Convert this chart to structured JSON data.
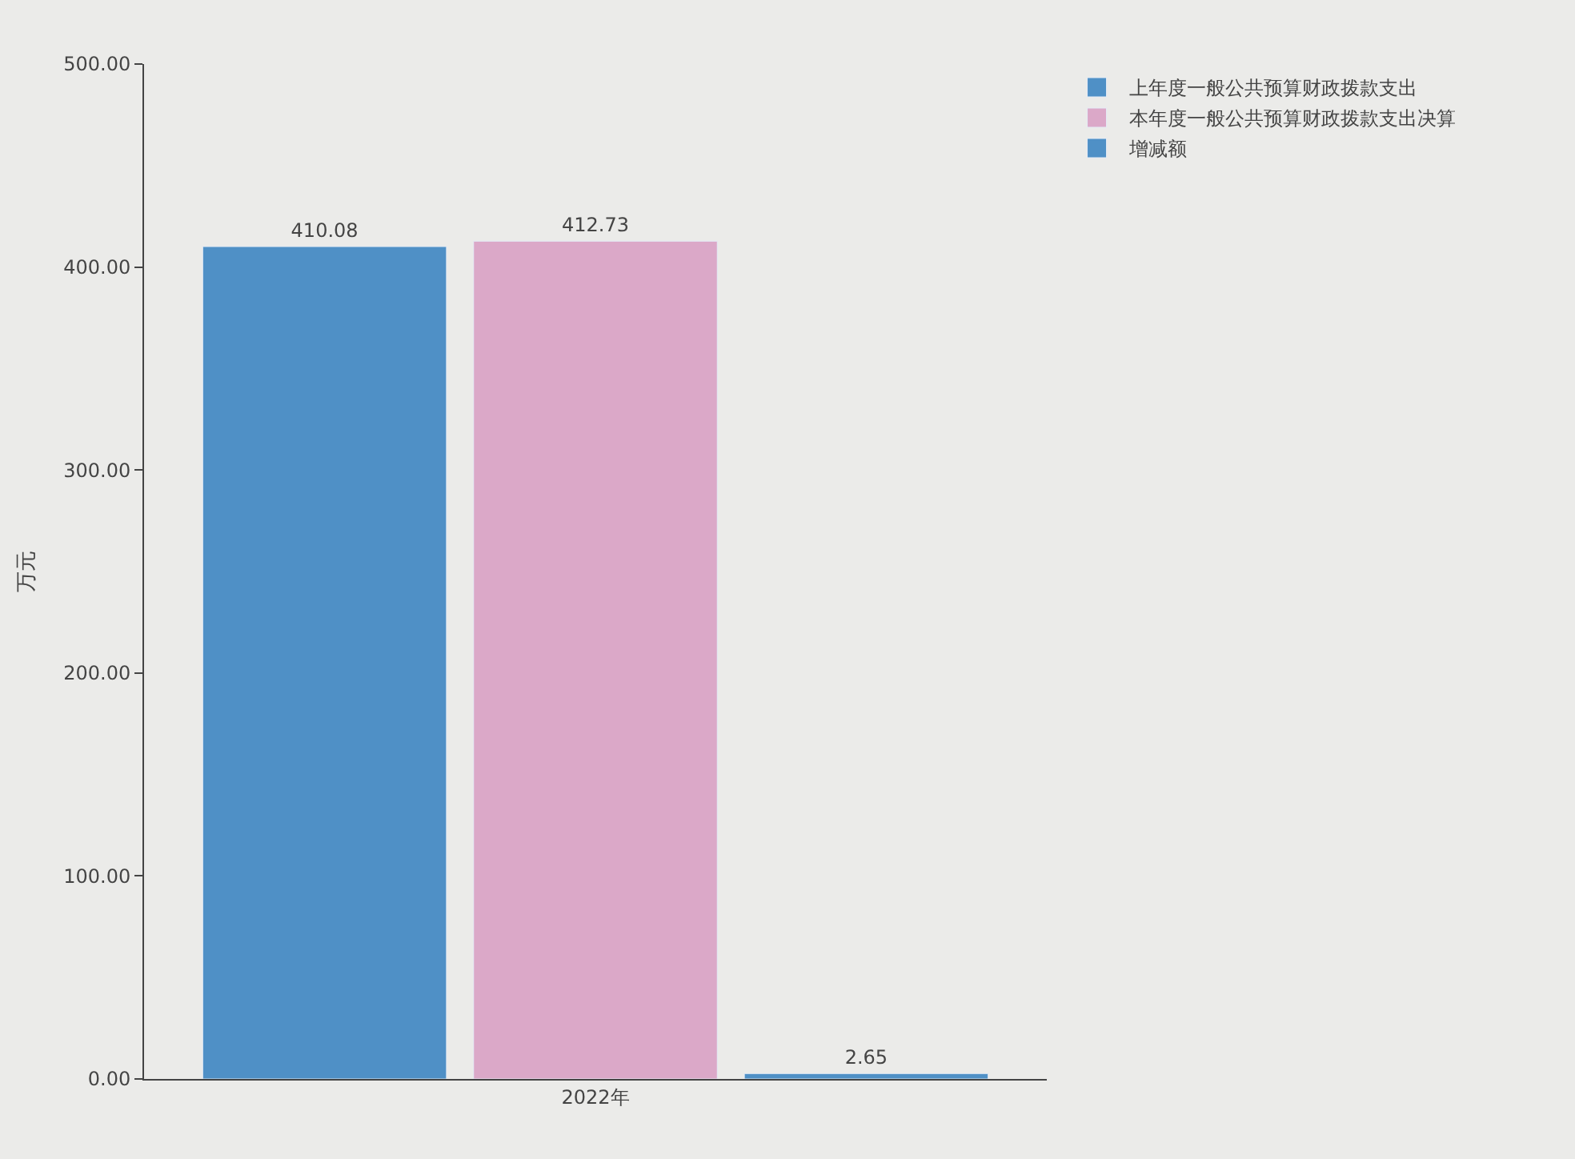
{
  "chart_data": {
    "type": "bar",
    "ylabel": "万元",
    "categories": [
      "2022年"
    ],
    "series": [
      {
        "name": "上年度一般公共预算财政拨款支出",
        "color": "#4f90c6",
        "values": [
          410.08
        ]
      },
      {
        "name": "本年度一般公共预算财政拨款支出决算",
        "color": "#dba8c8",
        "values": [
          412.73
        ]
      },
      {
        "name": "增减额",
        "color": "#4f90c6",
        "values": [
          2.65
        ]
      }
    ],
    "ylim": [
      0,
      500
    ],
    "yticks": [
      {
        "value": 0,
        "label": "0.00"
      },
      {
        "value": 100,
        "label": "100.00"
      },
      {
        "value": 200,
        "label": "200.00"
      },
      {
        "value": 300,
        "label": "300.00"
      },
      {
        "value": 400,
        "label": "400.00"
      },
      {
        "value": 500,
        "label": "500.00"
      }
    ],
    "data_labels": true,
    "grid": false,
    "legend": "top right"
  }
}
